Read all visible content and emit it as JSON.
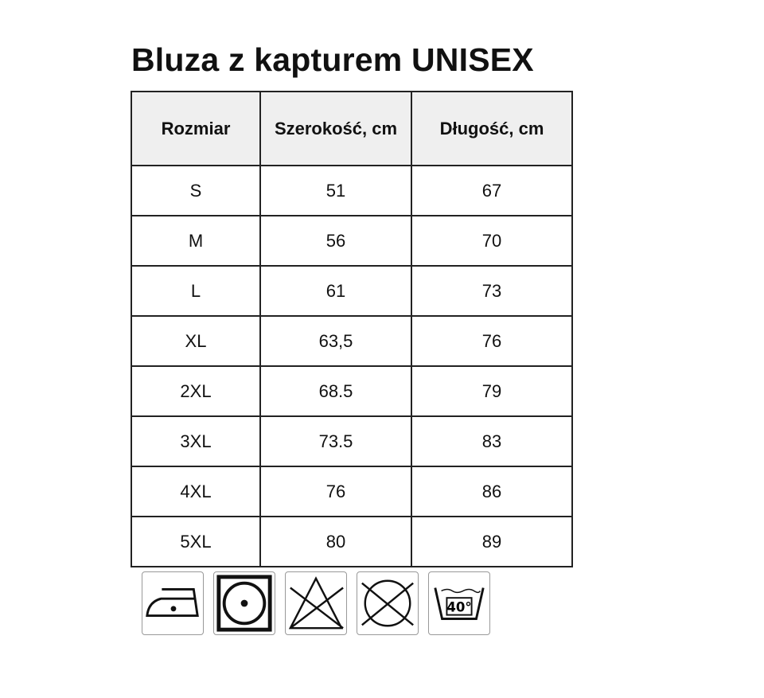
{
  "title": "Bluza z kapturem UNISEX",
  "headers": [
    "Rozmiar",
    "Szerokość, cm",
    "Długość, cm"
  ],
  "rows": [
    [
      "S",
      "51",
      "67"
    ],
    [
      "M",
      "56",
      "70"
    ],
    [
      "L",
      "61",
      "73"
    ],
    [
      "XL",
      "63,5",
      "76"
    ],
    [
      "2XL",
      "68.5",
      "79"
    ],
    [
      "3XL",
      "73.5",
      "83"
    ],
    [
      "4XL",
      "76",
      "86"
    ],
    [
      "5XL",
      "80",
      "89"
    ]
  ],
  "care_icons": [
    {
      "name": "iron-low-heat-icon"
    },
    {
      "name": "tumble-dry-icon"
    },
    {
      "name": "do-not-bleach-icon"
    },
    {
      "name": "do-not-dry-clean-icon"
    },
    {
      "name": "wash-40-icon",
      "label": "40°"
    }
  ]
}
